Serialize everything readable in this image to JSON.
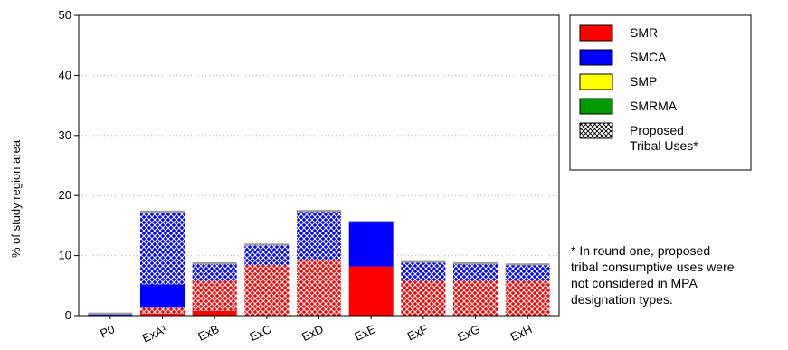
{
  "chart_data": {
    "type": "bar",
    "stacked": true,
    "ylabel": "% of study region area",
    "xlabel": "",
    "ylim": [
      0,
      50
    ],
    "yticks": [
      0,
      10,
      20,
      30,
      40,
      50
    ],
    "grid": "horizontal dotted",
    "legend_position": "right",
    "categories": [
      "P0",
      "ExA¹",
      "ExB",
      "ExC",
      "ExD",
      "ExE",
      "ExF",
      "ExG",
      "ExH"
    ],
    "series": [
      {
        "name": "SMR",
        "color": "#ff0000",
        "pattern": "solid",
        "values": [
          0,
          0.3,
          0.8,
          0,
          0,
          8.2,
          0,
          0,
          0
        ]
      },
      {
        "name": "SMR (proposed tribal uses)",
        "color": "#ff0000",
        "pattern": "crosshatch",
        "values": [
          0,
          1.0,
          5.0,
          8.4,
          9.3,
          0,
          5.8,
          5.8,
          5.8
        ]
      },
      {
        "name": "SMCA",
        "color": "#0000ff",
        "pattern": "solid",
        "values": [
          0.2,
          3.9,
          0,
          0,
          0,
          7.3,
          0,
          0,
          0
        ]
      },
      {
        "name": "SMCA (proposed tribal uses)",
        "color": "#0000ff",
        "pattern": "crosshatch",
        "values": [
          0,
          12.0,
          2.8,
          3.3,
          8.0,
          0,
          3.0,
          2.8,
          2.6
        ]
      }
    ],
    "legend": [
      {
        "label": "SMR",
        "color": "#ff0000",
        "pattern": "solid",
        "lines": [
          "SMR"
        ]
      },
      {
        "label": "SMCA",
        "color": "#0000ff",
        "pattern": "solid",
        "lines": [
          "SMCA"
        ]
      },
      {
        "label": "SMP",
        "color": "#ffff00",
        "pattern": "solid",
        "lines": [
          "SMP"
        ]
      },
      {
        "label": "SMRMA",
        "color": "#009900",
        "pattern": "solid",
        "lines": [
          "SMRMA"
        ]
      },
      {
        "label": "Proposed Tribal Uses*",
        "color": "#ffffff",
        "pattern": "crosshatch",
        "lines": [
          "Proposed",
          "Tribal Uses*"
        ]
      }
    ],
    "footnote": [
      "* In round one, proposed",
      "tribal consumptive uses were",
      "not considered in MPA",
      "designation types."
    ]
  }
}
